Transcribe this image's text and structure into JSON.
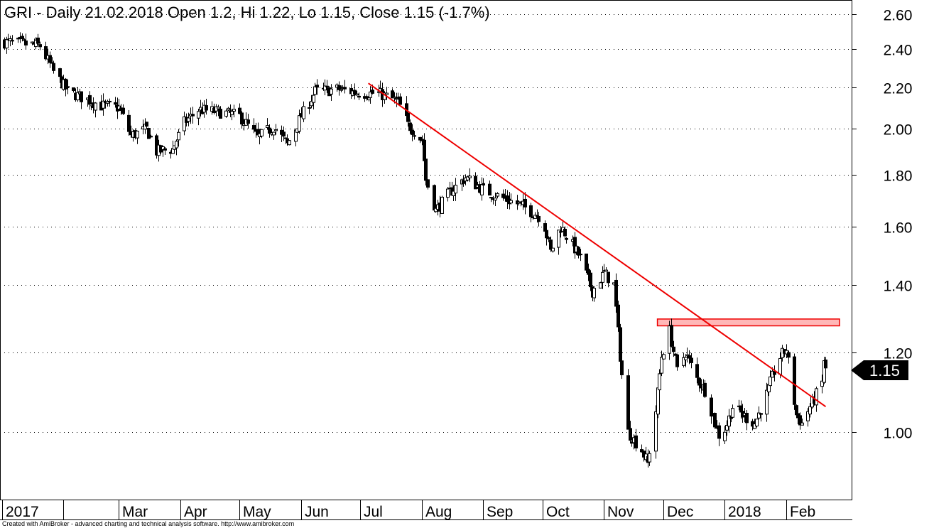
{
  "chart_data": {
    "type": "candlestick",
    "title": "GRI - Daily 21.02.2018 Open 1.2, Hi 1.22, Lo 1.15, Close 1.15 (-1.7%)",
    "y_scale": "log",
    "ylim": [
      0.92,
      2.62
    ],
    "y_ticks": [
      "2.60",
      "2.40",
      "2.20",
      "2.00",
      "1.80",
      "1.60",
      "1.40",
      "1.20",
      "1.00"
    ],
    "x_labels": [
      "2017",
      "Mar",
      "Apr",
      "May",
      "Jun",
      "Jul",
      "Aug",
      "Sep",
      "Oct",
      "Nov",
      "Dec",
      "2018",
      "Feb"
    ],
    "price_path": [
      [
        "2017-01-02",
        2.44
      ],
      [
        "2017-01-20",
        2.42
      ],
      [
        "2017-01-27",
        2.28
      ],
      [
        "2017-02-03",
        2.18
      ],
      [
        "2017-02-20",
        2.11
      ],
      [
        "2017-03-01",
        2.1
      ],
      [
        "2017-03-07",
        1.97
      ],
      [
        "2017-03-15",
        2.0
      ],
      [
        "2017-03-20",
        1.9
      ],
      [
        "2017-03-28",
        1.91
      ],
      [
        "2017-04-03",
        2.03
      ],
      [
        "2017-04-10",
        2.09
      ],
      [
        "2017-04-20",
        2.08
      ],
      [
        "2017-05-01",
        2.06
      ],
      [
        "2017-05-10",
        1.96
      ],
      [
        "2017-05-18",
        2.01
      ],
      [
        "2017-05-25",
        1.93
      ],
      [
        "2017-06-01",
        2.06
      ],
      [
        "2017-06-08",
        2.18
      ],
      [
        "2017-06-20",
        2.19
      ],
      [
        "2017-07-01",
        2.17
      ],
      [
        "2017-07-10",
        2.17
      ],
      [
        "2017-07-20",
        2.13
      ],
      [
        "2017-07-25",
        2.02
      ],
      [
        "2017-08-01",
        1.95
      ],
      [
        "2017-08-03",
        1.78
      ],
      [
        "2017-08-08",
        1.66
      ],
      [
        "2017-08-15",
        1.73
      ],
      [
        "2017-08-23",
        1.79
      ],
      [
        "2017-09-01",
        1.74
      ],
      [
        "2017-09-10",
        1.71
      ],
      [
        "2017-09-20",
        1.68
      ],
      [
        "2017-10-01",
        1.63
      ],
      [
        "2017-10-05",
        1.51
      ],
      [
        "2017-10-10",
        1.6
      ],
      [
        "2017-10-20",
        1.49
      ],
      [
        "2017-10-26",
        1.38
      ],
      [
        "2017-11-01",
        1.44
      ],
      [
        "2017-11-06",
        1.4
      ],
      [
        "2017-11-09",
        1.19
      ],
      [
        "2017-11-13",
        1.0
      ],
      [
        "2017-11-20",
        0.96
      ],
      [
        "2017-11-23",
        0.93
      ],
      [
        "2017-11-27",
        1.05
      ],
      [
        "2017-11-30",
        1.19
      ],
      [
        "2017-12-04",
        1.26
      ],
      [
        "2017-12-08",
        1.15
      ],
      [
        "2017-12-12",
        1.2
      ],
      [
        "2017-12-18",
        1.13
      ],
      [
        "2017-12-22",
        1.1
      ],
      [
        "2017-12-27",
        1.02
      ],
      [
        "2017-12-30",
        0.98
      ],
      [
        "2018-01-05",
        1.06
      ],
      [
        "2018-01-10",
        1.04
      ],
      [
        "2018-01-16",
        1.02
      ],
      [
        "2018-01-22",
        1.09
      ],
      [
        "2018-01-28",
        1.18
      ],
      [
        "2018-02-01",
        1.21
      ],
      [
        "2018-02-06",
        1.04
      ],
      [
        "2018-02-09",
        1.02
      ],
      [
        "2018-02-14",
        1.07
      ],
      [
        "2018-02-19",
        1.12
      ],
      [
        "2018-02-20",
        1.18
      ],
      [
        "2018-02-21",
        1.15
      ]
    ],
    "last_close": "1.15",
    "lines": [
      {
        "name": "downtrend",
        "color": "#ee0000",
        "points": [
          [
            "2017-07-05",
            2.22
          ],
          [
            "2018-02-21",
            1.06
          ]
        ]
      }
    ],
    "resistance_zone": {
      "color": "#ff9999",
      "border": "#ee0000",
      "x": [
        "2017-11-28",
        "2018-02-28"
      ],
      "y": [
        1.275,
        1.295
      ]
    },
    "credit": "Created with AmiBroker - advanced charting and technical analysis software. http://www.amibroker.com"
  }
}
